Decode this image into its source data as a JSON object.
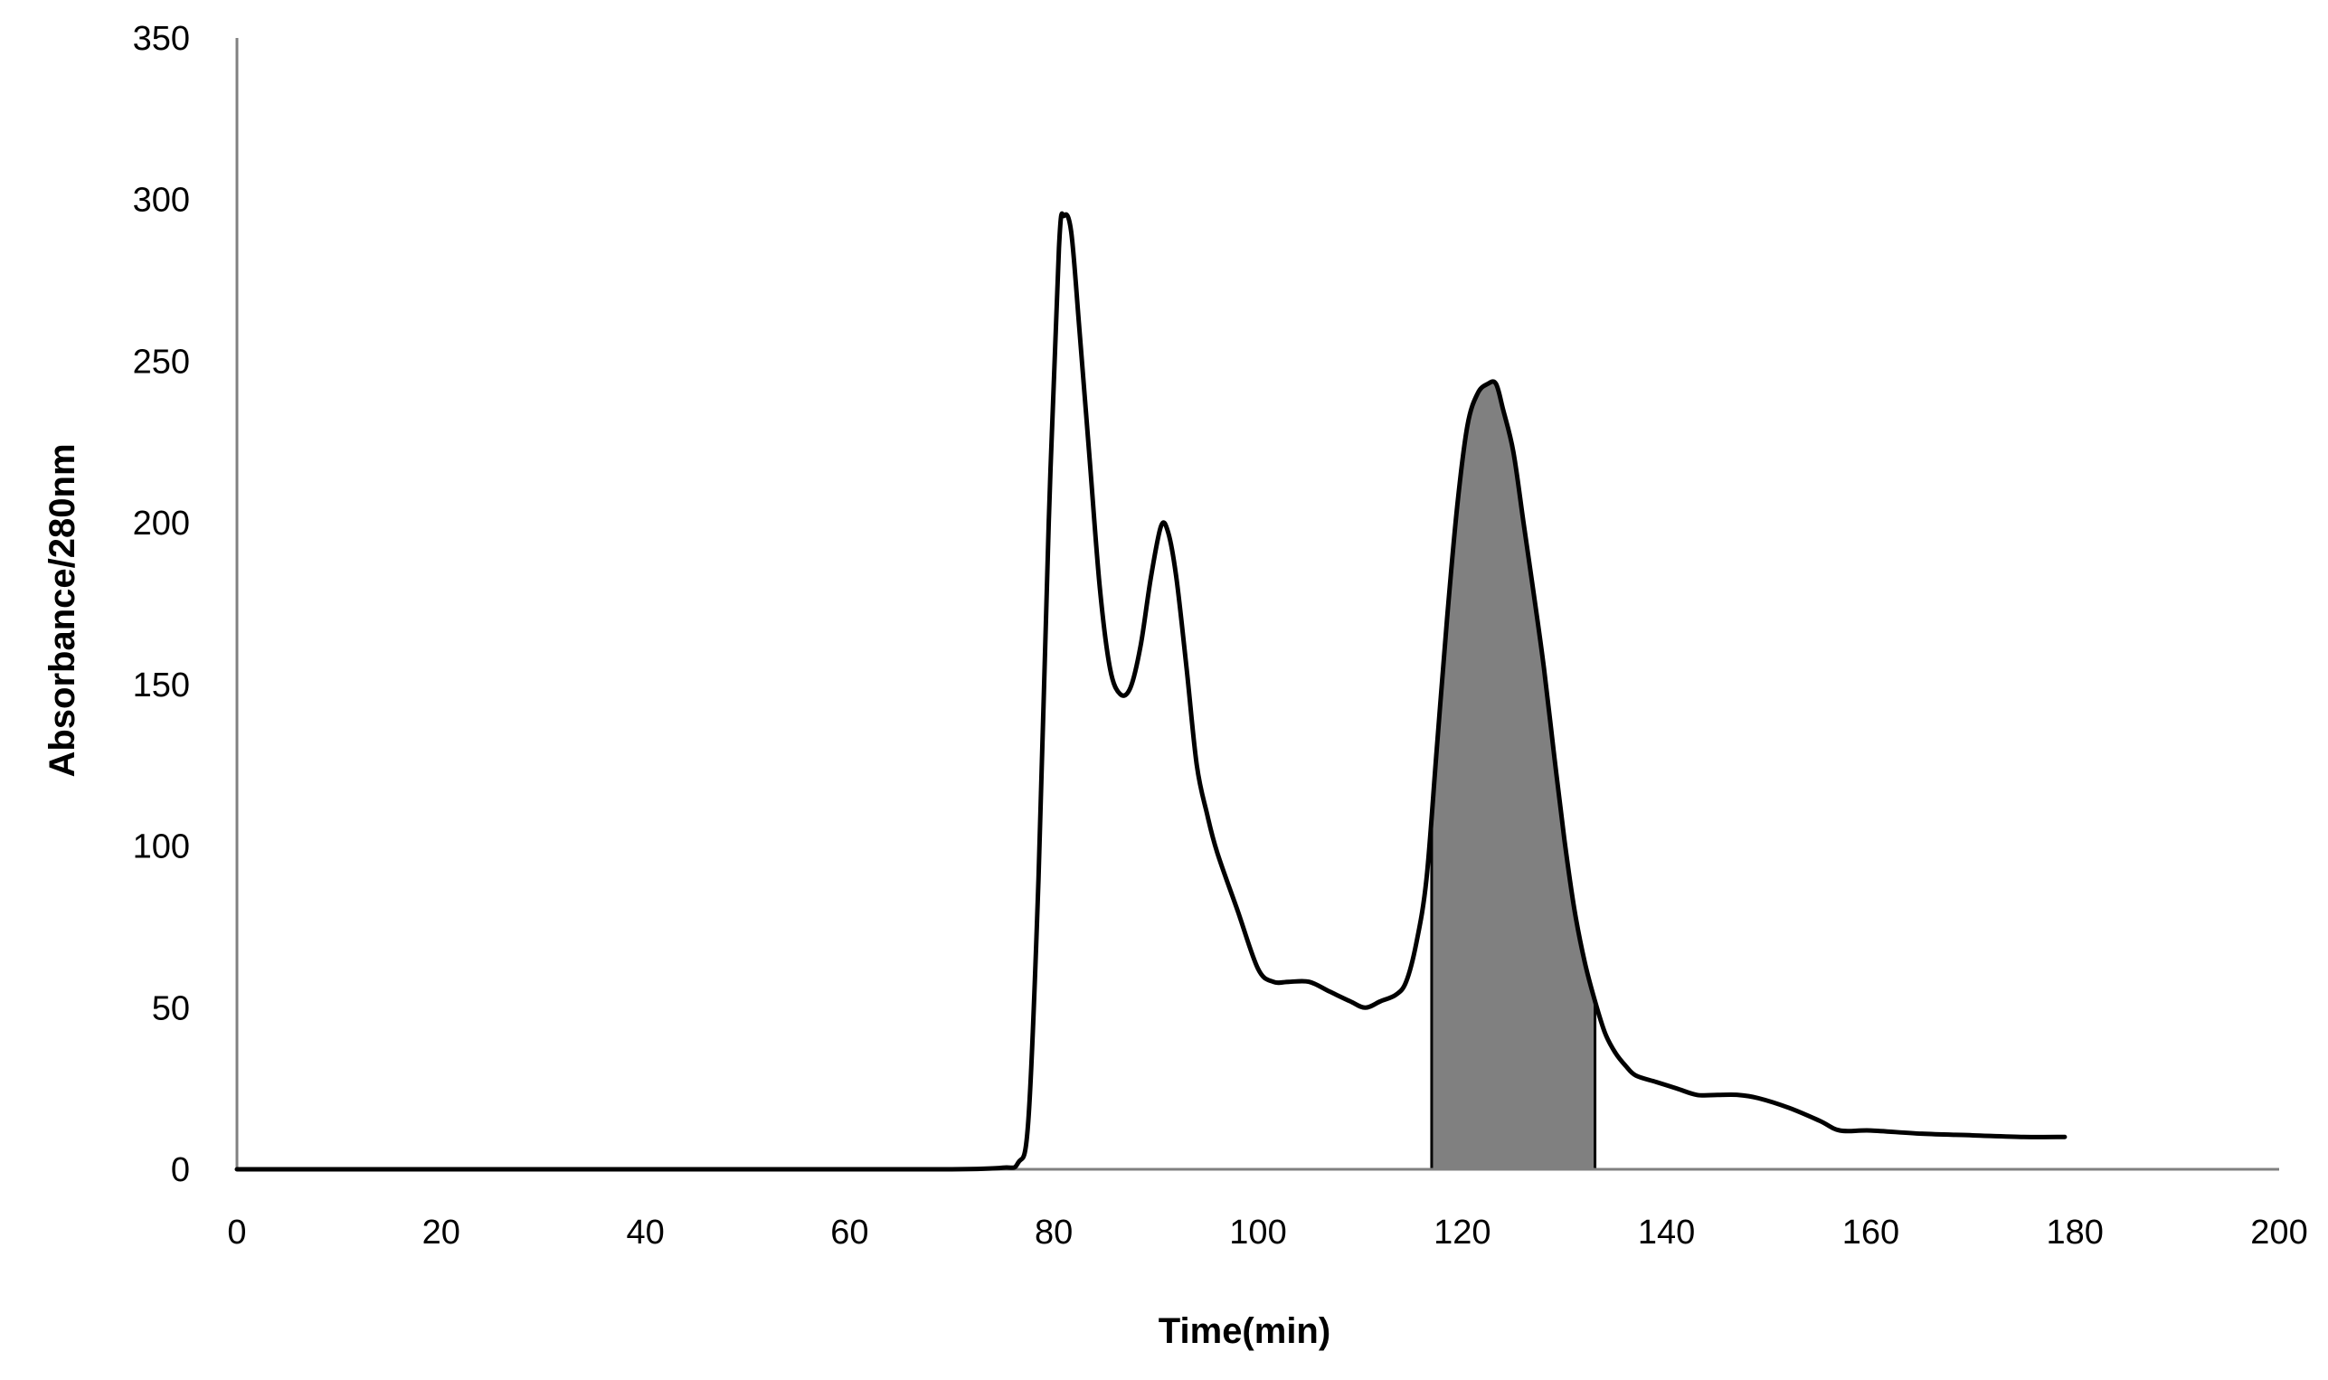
{
  "chart_data": {
    "type": "line",
    "title": "",
    "xlabel": "Time(min)",
    "ylabel": "Absorbance/280nm",
    "xlim": [
      0,
      200
    ],
    "ylim": [
      0,
      350
    ],
    "xticks": [
      0,
      20,
      40,
      60,
      80,
      100,
      120,
      140,
      160,
      180,
      200
    ],
    "yticks": [
      0,
      50,
      100,
      150,
      200,
      250,
      300,
      350
    ],
    "grid": false,
    "legend": "none",
    "series": [
      {
        "color": "#000000",
        "points": [
          [
            0,
            0
          ],
          [
            20,
            0
          ],
          [
            40,
            0
          ],
          [
            60,
            0
          ],
          [
            70,
            0
          ],
          [
            75,
            0.5
          ],
          [
            76.5,
            2
          ],
          [
            77.5,
            15
          ],
          [
            78.5,
            90
          ],
          [
            79.5,
            200
          ],
          [
            80.5,
            285
          ],
          [
            81,
            295
          ],
          [
            81.7,
            290
          ],
          [
            82.5,
            260
          ],
          [
            83.5,
            220
          ],
          [
            84.5,
            180
          ],
          [
            85.5,
            155
          ],
          [
            86.5,
            147
          ],
          [
            87.5,
            149
          ],
          [
            88.5,
            162
          ],
          [
            89.5,
            183
          ],
          [
            90.5,
            199
          ],
          [
            91.2,
            197
          ],
          [
            92,
            183
          ],
          [
            93,
            155
          ],
          [
            94,
            125
          ],
          [
            95,
            110
          ],
          [
            96,
            98
          ],
          [
            98,
            80
          ],
          [
            100,
            62
          ],
          [
            101.5,
            58
          ],
          [
            103,
            58
          ],
          [
            105,
            58
          ],
          [
            107,
            55
          ],
          [
            109,
            52
          ],
          [
            110.5,
            50
          ],
          [
            112,
            52
          ],
          [
            113.5,
            54
          ],
          [
            114.5,
            58
          ],
          [
            115.5,
            70
          ],
          [
            116.5,
            90
          ],
          [
            117.5,
            130
          ],
          [
            118.5,
            170
          ],
          [
            119.5,
            205
          ],
          [
            120.5,
            230
          ],
          [
            121.5,
            240
          ],
          [
            122.5,
            243
          ],
          [
            123.3,
            243
          ],
          [
            124,
            235
          ],
          [
            125,
            222
          ],
          [
            126,
            200
          ],
          [
            127,
            178
          ],
          [
            128,
            155
          ],
          [
            129,
            128
          ],
          [
            130,
            102
          ],
          [
            131,
            80
          ],
          [
            132,
            64
          ],
          [
            133,
            52
          ],
          [
            134,
            42
          ],
          [
            135,
            36
          ],
          [
            136,
            32
          ],
          [
            137,
            29
          ],
          [
            139,
            27
          ],
          [
            141,
            25
          ],
          [
            143,
            23
          ],
          [
            145,
            23
          ],
          [
            147,
            23
          ],
          [
            149,
            22
          ],
          [
            152,
            19
          ],
          [
            155,
            15
          ],
          [
            157,
            12
          ],
          [
            160,
            12
          ],
          [
            165,
            11
          ],
          [
            170,
            10.5
          ],
          [
            175,
            10
          ],
          [
            179,
            10
          ]
        ]
      }
    ],
    "shaded_region": {
      "x_start": 117,
      "x_end": 133,
      "fill": "#808080"
    }
  }
}
